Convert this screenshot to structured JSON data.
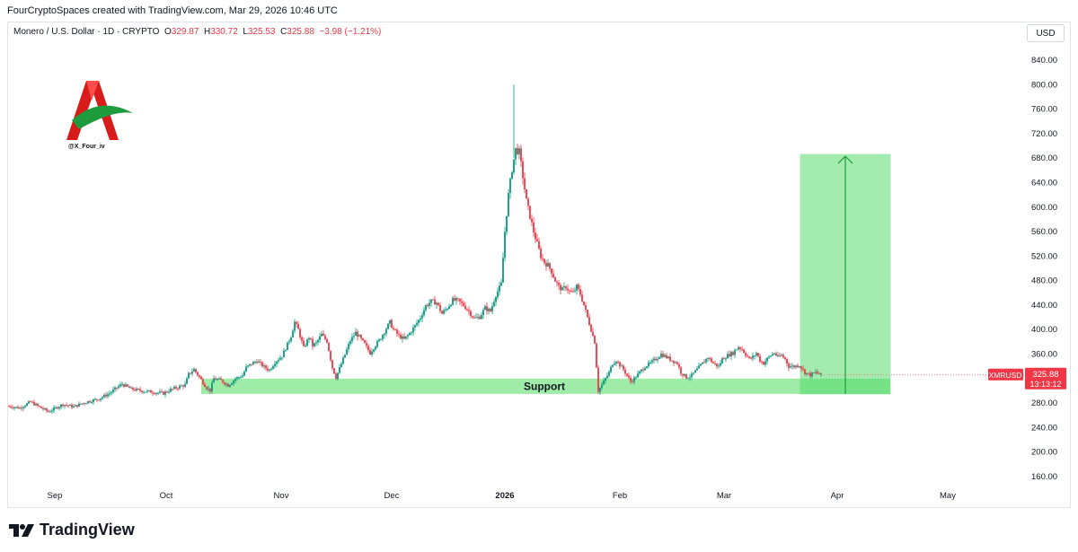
{
  "header": {
    "attribution": "FourCryptoSpaces created with TradingView.com, Mar 29, 2026 10:46 UTC",
    "symbol": "Monero / U.S. Dollar · 1D · CRYPTO",
    "o_label": "O",
    "o_value": "329.87",
    "h_label": "H",
    "h_value": "330.72",
    "l_label": "L",
    "l_value": "325.53",
    "c_label": "C",
    "c_value": "325.88",
    "change": "−3.98 (−1.21%)",
    "currency_button": "USD"
  },
  "watermark": {
    "handle": "@X_Four_iv"
  },
  "footer": {
    "brand": "TradingView"
  },
  "colors": {
    "up": "#089981",
    "down": "#f23645",
    "zone": "#7ee68a",
    "projection": "#4cd964"
  },
  "chart_data": {
    "type": "candlestick",
    "symbol": "XMRUSD",
    "last_price": "325.88",
    "countdown": "13:13:12",
    "support_label": "Support",
    "support_zone": [
      295,
      320
    ],
    "target_zone": [
      295,
      686
    ],
    "ylim": [
      140,
      880
    ],
    "y_ticks": [
      "840.00",
      "800.00",
      "760.00",
      "720.00",
      "680.00",
      "640.00",
      "600.00",
      "560.00",
      "520.00",
      "480.00",
      "440.00",
      "400.00",
      "360.00",
      "320.00",
      "280.00",
      "240.00",
      "200.00",
      "160.00"
    ],
    "x_ticks": [
      "Sep",
      "Oct",
      "Nov",
      "Dec",
      "2026",
      "Feb",
      "Mar",
      "Apr",
      "May"
    ],
    "close_path": [
      [
        0,
        275
      ],
      [
        6,
        272
      ],
      [
        12,
        282
      ],
      [
        18,
        272
      ],
      [
        22,
        266
      ],
      [
        30,
        278
      ],
      [
        36,
        274
      ],
      [
        42,
        281
      ],
      [
        50,
        287
      ],
      [
        56,
        296
      ],
      [
        60,
        305
      ],
      [
        63,
        311
      ],
      [
        68,
        303
      ],
      [
        74,
        300
      ],
      [
        80,
        298
      ],
      [
        86,
        296
      ],
      [
        90,
        302
      ],
      [
        95,
        307
      ],
      [
        98,
        310
      ],
      [
        100,
        327
      ],
      [
        103,
        335
      ],
      [
        107,
        318
      ],
      [
        110,
        305
      ],
      [
        112,
        301
      ],
      [
        114,
        320
      ],
      [
        118,
        317
      ],
      [
        122,
        309
      ],
      [
        126,
        320
      ],
      [
        130,
        325
      ],
      [
        132,
        338
      ],
      [
        135,
        344
      ],
      [
        138,
        349
      ],
      [
        142,
        339
      ],
      [
        145,
        334
      ],
      [
        148,
        347
      ],
      [
        152,
        357
      ],
      [
        155,
        376
      ],
      [
        157,
        390
      ],
      [
        159,
        412
      ],
      [
        161,
        400
      ],
      [
        164,
        370
      ],
      [
        167,
        388
      ],
      [
        169,
        374
      ],
      [
        171,
        378
      ],
      [
        174,
        392
      ],
      [
        177,
        381
      ],
      [
        180,
        338
      ],
      [
        182,
        322
      ],
      [
        185,
        344
      ],
      [
        188,
        367
      ],
      [
        190,
        382
      ],
      [
        193,
        395
      ],
      [
        196,
        384
      ],
      [
        198,
        376
      ],
      [
        201,
        362
      ],
      [
        203,
        371
      ],
      [
        206,
        382
      ],
      [
        209,
        397
      ],
      [
        212,
        412
      ],
      [
        214,
        400
      ],
      [
        217,
        390
      ],
      [
        220,
        384
      ],
      [
        223,
        394
      ],
      [
        226,
        406
      ],
      [
        229,
        420
      ],
      [
        232,
        439
      ],
      [
        235,
        446
      ],
      [
        238,
        444
      ],
      [
        241,
        426
      ],
      [
        244,
        436
      ],
      [
        247,
        448
      ],
      [
        250,
        447
      ],
      [
        253,
        440
      ],
      [
        256,
        430
      ],
      [
        259,
        418
      ],
      [
        262,
        421
      ],
      [
        265,
        435
      ],
      [
        268,
        430
      ],
      [
        271,
        457
      ],
      [
        274,
        474
      ],
      [
        276,
        560
      ],
      [
        278,
        620
      ],
      [
        280,
        662
      ],
      [
        282,
        694
      ],
      [
        284,
        690
      ],
      [
        286,
        650
      ],
      [
        288,
        610
      ],
      [
        290,
        585
      ],
      [
        292,
        560
      ],
      [
        294,
        540
      ],
      [
        296,
        520
      ],
      [
        298,
        510
      ],
      [
        300,
        505
      ],
      [
        302,
        495
      ],
      [
        304,
        480
      ],
      [
        306,
        470
      ],
      [
        308,
        465
      ],
      [
        310,
        470
      ],
      [
        312,
        462
      ],
      [
        314,
        460
      ],
      [
        316,
        470
      ],
      [
        318,
        458
      ],
      [
        320,
        440
      ],
      [
        322,
        420
      ],
      [
        324,
        400
      ],
      [
        326,
        380
      ],
      [
        327,
        340
      ],
      [
        328,
        300
      ],
      [
        330,
        310
      ],
      [
        332,
        320
      ],
      [
        334,
        330
      ],
      [
        336,
        345
      ],
      [
        338,
        350
      ],
      [
        340,
        342
      ],
      [
        342,
        335
      ],
      [
        344,
        325
      ],
      [
        346,
        315
      ],
      [
        348,
        320
      ],
      [
        351,
        330
      ],
      [
        354,
        340
      ],
      [
        357,
        345
      ],
      [
        360,
        352
      ],
      [
        363,
        360
      ],
      [
        366,
        355
      ],
      [
        369,
        350
      ],
      [
        372,
        345
      ],
      [
        374,
        330
      ],
      [
        377,
        322
      ],
      [
        380,
        325
      ],
      [
        383,
        335
      ],
      [
        386,
        345
      ],
      [
        389,
        355
      ],
      [
        392,
        345
      ],
      [
        395,
        340
      ],
      [
        397,
        352
      ],
      [
        400,
        358
      ],
      [
        403,
        362
      ],
      [
        406,
        372
      ],
      [
        408,
        368
      ],
      [
        410,
        360
      ],
      [
        412,
        352
      ],
      [
        414,
        355
      ],
      [
        416,
        362
      ],
      [
        418,
        350
      ],
      [
        420,
        345
      ],
      [
        422,
        352
      ],
      [
        424,
        358
      ],
      [
        426,
        362
      ],
      [
        428,
        355
      ],
      [
        430,
        358
      ],
      [
        432,
        352
      ],
      [
        434,
        340
      ],
      [
        437,
        340
      ],
      [
        440,
        342
      ],
      [
        443,
        330
      ],
      [
        446,
        326
      ],
      [
        449,
        330
      ],
      [
        452,
        326
      ]
    ]
  }
}
